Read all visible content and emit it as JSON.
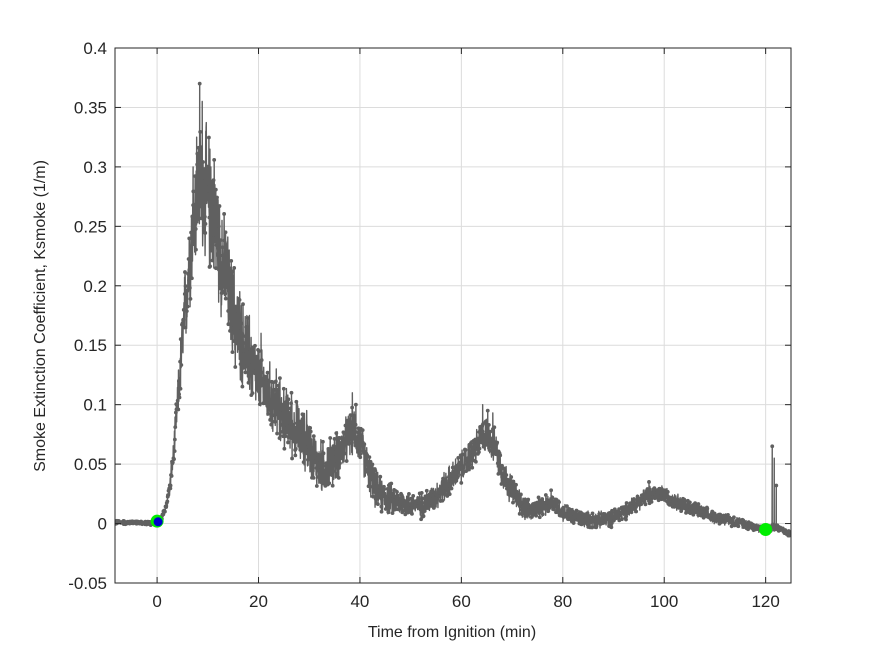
{
  "chart_data": {
    "type": "line",
    "title": "",
    "xlabel": "Time from Ignition (min)",
    "ylabel": "Smoke Extinction Coefficient, Ksmoke (1/m)",
    "xlim": [
      -8.3,
      125
    ],
    "ylim": [
      -0.05,
      0.4
    ],
    "x_ticks": [
      0,
      20,
      40,
      60,
      80,
      100,
      120
    ],
    "y_ticks": [
      -0.05,
      0,
      0.05,
      0.1,
      0.15,
      0.2,
      0.25,
      0.3,
      0.35,
      0.4
    ],
    "x_tick_labels": [
      "0",
      "20",
      "40",
      "60",
      "80",
      "100",
      "120"
    ],
    "y_tick_labels": [
      "-0.05",
      "0",
      "0.05",
      "0.1",
      "0.15",
      "0.2",
      "0.25",
      "0.3",
      "0.35",
      "0.4"
    ],
    "grid": true,
    "legend": "none",
    "series": [
      {
        "color": "#606060",
        "marker": "dot",
        "noise": [
          [
            -8.3,
            0.002
          ],
          [
            0,
            0.002
          ],
          [
            2,
            0.005
          ],
          [
            4,
            0.02
          ],
          [
            6,
            0.05
          ],
          [
            10,
            0.07
          ],
          [
            14,
            0.05
          ],
          [
            20,
            0.035
          ],
          [
            30,
            0.028
          ],
          [
            40,
            0.022
          ],
          [
            50,
            0.012
          ],
          [
            60,
            0.016
          ],
          [
            66,
            0.018
          ],
          [
            75,
            0.01
          ],
          [
            85,
            0.008
          ],
          [
            100,
            0.009
          ],
          [
            110,
            0.006
          ],
          [
            120,
            0.004
          ],
          [
            125,
            0.003
          ]
        ],
        "points": [
          [
            -8.3,
            0.001
          ],
          [
            -6,
            0.001
          ],
          [
            -4,
            0.001
          ],
          [
            -2,
            0.0
          ],
          [
            0,
            0.001
          ],
          [
            0.8,
            0.004
          ],
          [
            1.5,
            0.01
          ],
          [
            2.5,
            0.03
          ],
          [
            3.3,
            0.06
          ],
          [
            4,
            0.1
          ],
          [
            4.8,
            0.14
          ],
          [
            5.5,
            0.18
          ],
          [
            6.3,
            0.22
          ],
          [
            7,
            0.25
          ],
          [
            8,
            0.28
          ],
          [
            9,
            0.285
          ],
          [
            10,
            0.27
          ],
          [
            11,
            0.265
          ],
          [
            12,
            0.24
          ],
          [
            13,
            0.215
          ],
          [
            14,
            0.2
          ],
          [
            15,
            0.175
          ],
          [
            16,
            0.16
          ],
          [
            17,
            0.15
          ],
          [
            18,
            0.14
          ],
          [
            19,
            0.13
          ],
          [
            20,
            0.12
          ],
          [
            22,
            0.108
          ],
          [
            24,
            0.095
          ],
          [
            26,
            0.085
          ],
          [
            28,
            0.075
          ],
          [
            30,
            0.065
          ],
          [
            31,
            0.055
          ],
          [
            32,
            0.048
          ],
          [
            33,
            0.047
          ],
          [
            34,
            0.05
          ],
          [
            35,
            0.055
          ],
          [
            36,
            0.06
          ],
          [
            37,
            0.067
          ],
          [
            38,
            0.075
          ],
          [
            39,
            0.078
          ],
          [
            40,
            0.068
          ],
          [
            41,
            0.055
          ],
          [
            42,
            0.04
          ],
          [
            43,
            0.03
          ],
          [
            44,
            0.024
          ],
          [
            46,
            0.02
          ],
          [
            48,
            0.018
          ],
          [
            50,
            0.016
          ],
          [
            52,
            0.015
          ],
          [
            54,
            0.02
          ],
          [
            56,
            0.028
          ],
          [
            58,
            0.038
          ],
          [
            60,
            0.047
          ],
          [
            62,
            0.058
          ],
          [
            63,
            0.065
          ],
          [
            64,
            0.072
          ],
          [
            65,
            0.075
          ],
          [
            66,
            0.07
          ],
          [
            67,
            0.06
          ],
          [
            68,
            0.045
          ],
          [
            69,
            0.035
          ],
          [
            70,
            0.028
          ],
          [
            72,
            0.015
          ],
          [
            74,
            0.01
          ],
          [
            76,
            0.014
          ],
          [
            78,
            0.018
          ],
          [
            79,
            0.015
          ],
          [
            80,
            0.01
          ],
          [
            82,
            0.006
          ],
          [
            84,
            0.004
          ],
          [
            86,
            0.003
          ],
          [
            88,
            0.003
          ],
          [
            90,
            0.005
          ],
          [
            92,
            0.01
          ],
          [
            94,
            0.016
          ],
          [
            96,
            0.022
          ],
          [
            98,
            0.025
          ],
          [
            100,
            0.024
          ],
          [
            102,
            0.02
          ],
          [
            104,
            0.015
          ],
          [
            106,
            0.012
          ],
          [
            108,
            0.008
          ],
          [
            110,
            0.005
          ],
          [
            112,
            0.004
          ],
          [
            114,
            0.002
          ],
          [
            116,
            0.0
          ],
          [
            118,
            -0.003
          ],
          [
            120,
            -0.005
          ],
          [
            121,
            -0.004
          ],
          [
            122,
            -0.003
          ],
          [
            123,
            -0.004
          ],
          [
            124,
            -0.008
          ],
          [
            125,
            -0.009
          ]
        ],
        "spikes": [
          [
            8.4,
            0.37
          ],
          [
            8.9,
            0.355
          ],
          [
            7.8,
            0.325
          ],
          [
            9.6,
            0.33
          ],
          [
            7.1,
            0.3
          ],
          [
            10.6,
            0.3
          ],
          [
            11.4,
            0.285
          ],
          [
            12.8,
            0.255
          ],
          [
            13.5,
            0.245
          ],
          [
            15.2,
            0.215
          ],
          [
            16.3,
            0.195
          ],
          [
            18.2,
            0.175
          ],
          [
            20.5,
            0.16
          ],
          [
            23.5,
            0.13
          ],
          [
            26.5,
            0.11
          ],
          [
            29.5,
            0.095
          ],
          [
            38.5,
            0.11
          ],
          [
            39.2,
            0.1
          ],
          [
            64.2,
            0.1
          ],
          [
            65.2,
            0.095
          ],
          [
            66.2,
            0.093
          ],
          [
            77.7,
            0.028
          ],
          [
            97,
            0.035
          ],
          [
            121.3,
            0.065
          ],
          [
            121.7,
            0.055
          ],
          [
            122.1,
            0.032
          ]
        ]
      }
    ],
    "markers": [
      {
        "x": 0,
        "y": 0.002,
        "color": "#00ee00"
      },
      {
        "x": 120,
        "y": -0.005,
        "color": "#00ee00"
      },
      {
        "x": 0.2,
        "y": 0.0015,
        "color": "#0000cc"
      }
    ]
  }
}
